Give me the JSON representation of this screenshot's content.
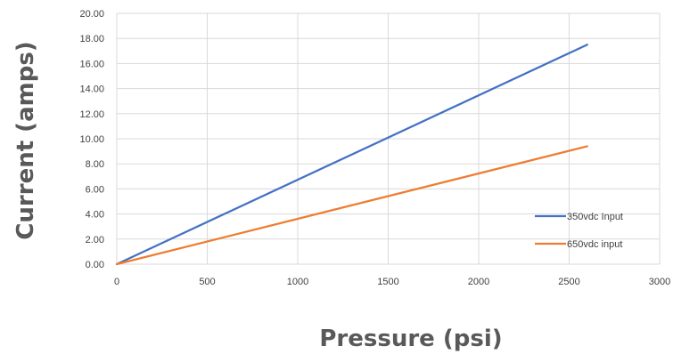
{
  "chart_data": {
    "type": "line",
    "title": "",
    "xlabel": "Pressure (psi)",
    "ylabel": "Current (amps)",
    "xlim": [
      0,
      3000
    ],
    "ylim": [
      0,
      20
    ],
    "x_ticks": [
      "0",
      "500",
      "1000",
      "1500",
      "2000",
      "2500",
      "3000"
    ],
    "y_ticks": [
      "0.00",
      "2.00",
      "4.00",
      "6.00",
      "8.00",
      "10.00",
      "12.00",
      "14.00",
      "16.00",
      "18.00",
      "20.00"
    ],
    "x_tick_values": [
      0,
      500,
      1000,
      1500,
      2000,
      2500,
      3000
    ],
    "y_tick_values": [
      0,
      2,
      4,
      6,
      8,
      10,
      12,
      14,
      16,
      18,
      20
    ],
    "grid": true,
    "legend_position": "bottom-right",
    "series": [
      {
        "name": "350vdc Input",
        "color": "#4472C4",
        "x": [
          0,
          2600
        ],
        "y": [
          0,
          17.5
        ]
      },
      {
        "name": "650vdc input",
        "color": "#ED7D31",
        "x": [
          0,
          2600
        ],
        "y": [
          0,
          9.4
        ]
      }
    ]
  }
}
